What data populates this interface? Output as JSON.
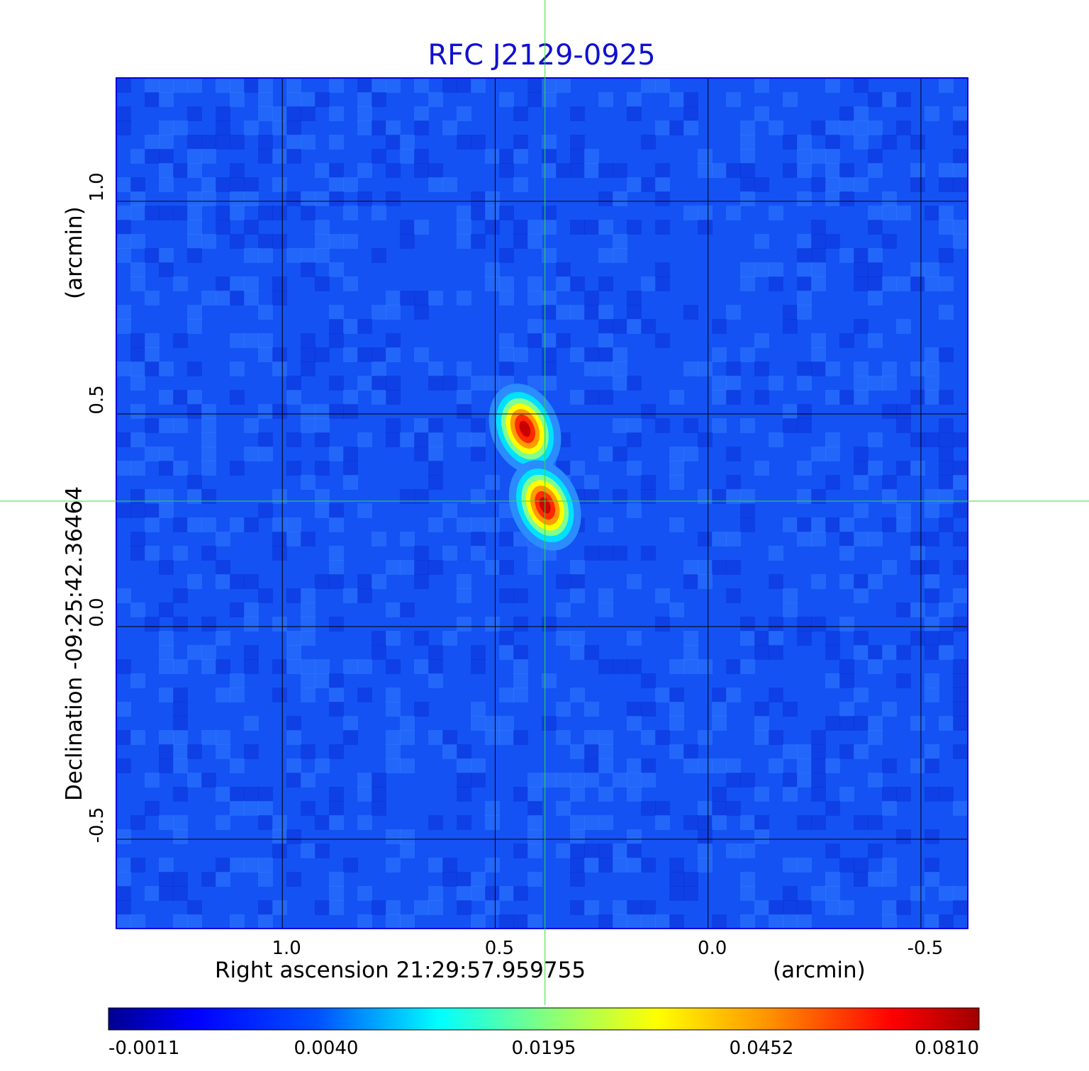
{
  "chart_data": {
    "type": "heatmap",
    "title": "RFC J2129-0925",
    "xlabel": "Right ascension  21:29:57.959755",
    "xunit": "(arcmin)",
    "ylabel": "Declination  -09:25:42.36464",
    "yunit": "(arcmin)",
    "xlim": [
      1.39,
      -0.61
    ],
    "ylim": [
      -0.71,
      1.29
    ],
    "x_ticks": [
      {
        "value": 1.0,
        "label": "1.0"
      },
      {
        "value": 0.5,
        "label": "0.5"
      },
      {
        "value": 0.0,
        "label": "0.0"
      },
      {
        "value": -0.5,
        "label": "-0.5"
      }
    ],
    "y_ticks": [
      {
        "value": 1.0,
        "label": "1.0"
      },
      {
        "value": 0.5,
        "label": "0.5"
      },
      {
        "value": 0.0,
        "label": "0.0"
      },
      {
        "value": -0.5,
        "label": "-0.5"
      }
    ],
    "grid": true,
    "crosshair": {
      "x": 0.383,
      "y": 0.295,
      "color": "#33dd33"
    },
    "sources": [
      {
        "x": 0.43,
        "y": 0.465,
        "peak": 0.081
      },
      {
        "x": 0.383,
        "y": 0.285,
        "peak": 0.081
      }
    ],
    "background_level": 0.001,
    "colorbar": {
      "ticks": [
        "-0.0011",
        "0.0040",
        "0.0195",
        "0.0452",
        "0.0810"
      ],
      "colors": [
        "#0000a0",
        "#0000ff",
        "#00ffff",
        "#ffff00",
        "#ff0000",
        "#a00000"
      ]
    }
  }
}
